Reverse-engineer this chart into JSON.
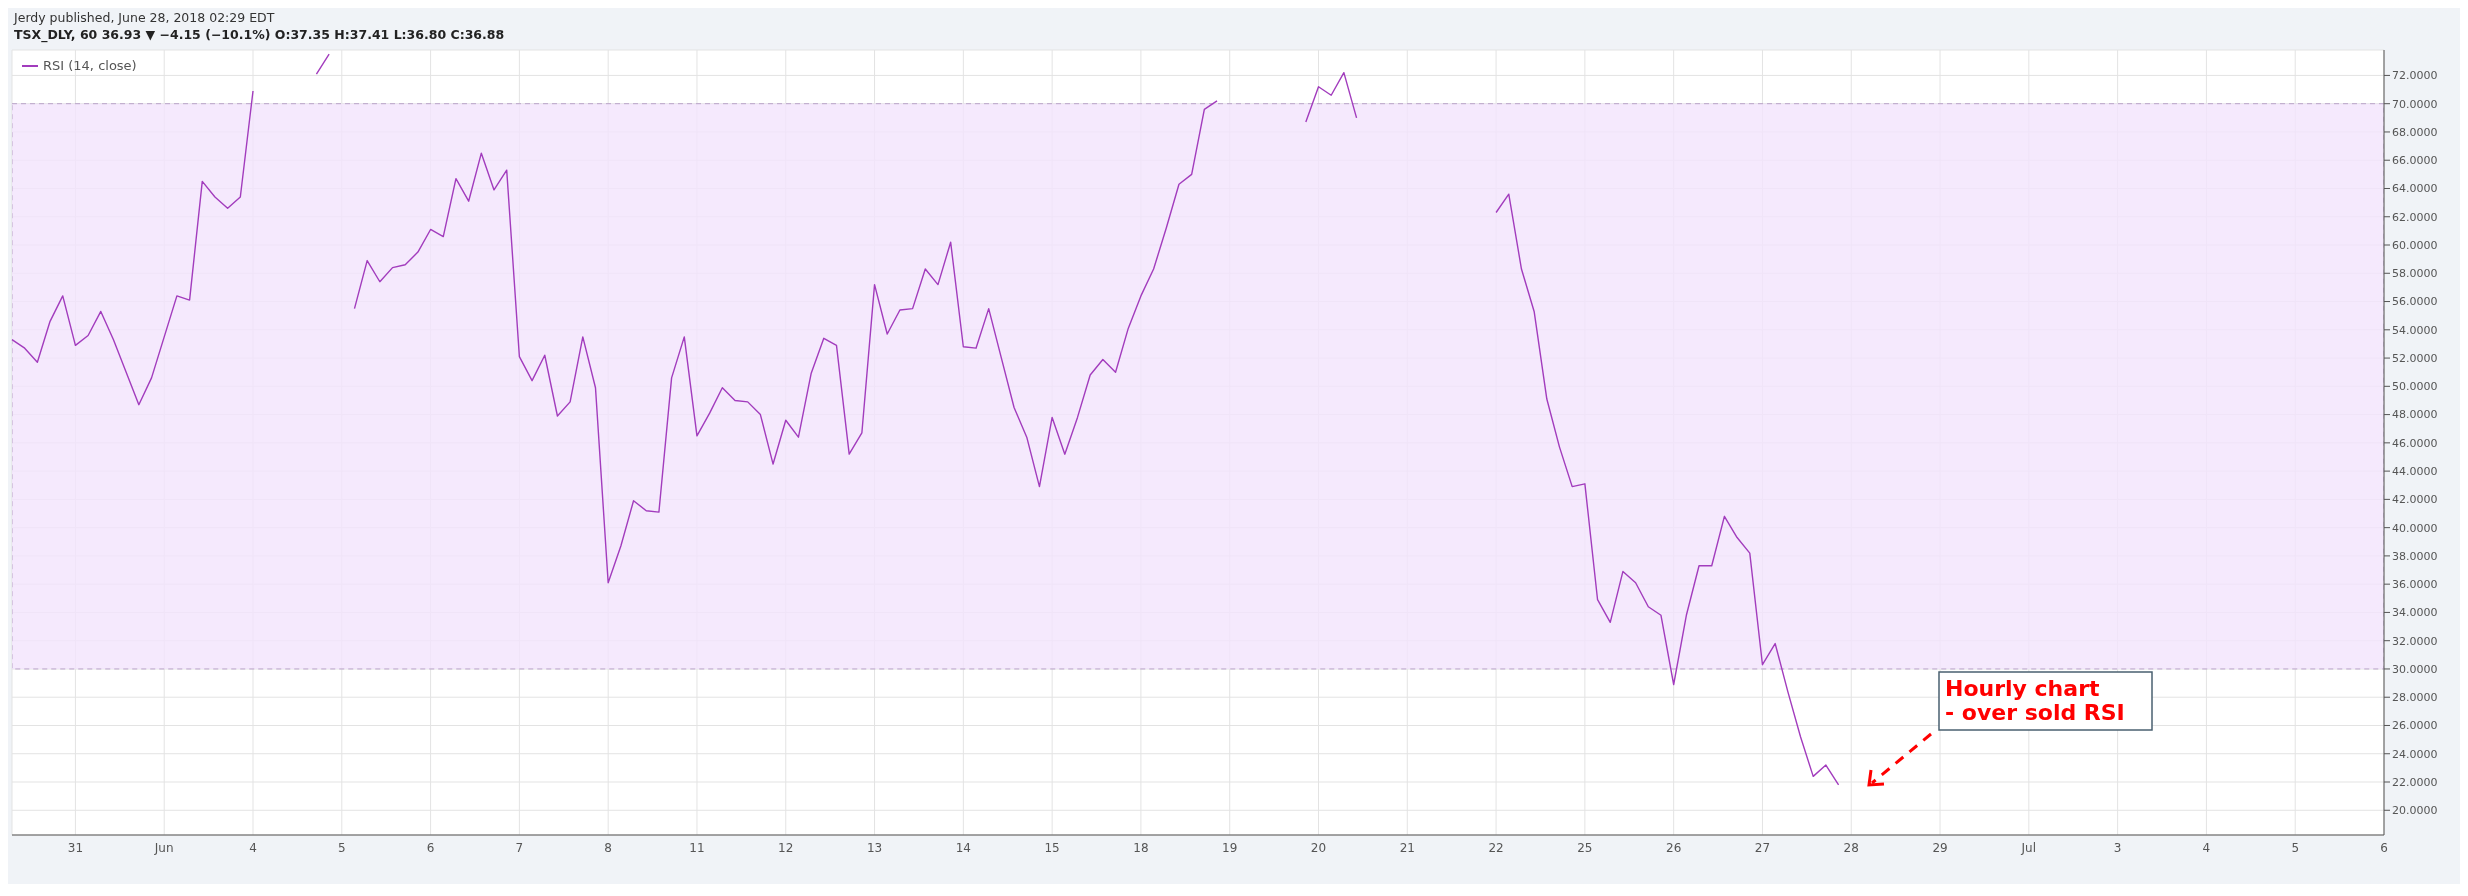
{
  "chart_data": {
    "type": "line",
    "title": "Jerdy published, June 28, 2018 02:29 EDT",
    "subtitle": "TSX_DLY, 60 36.93 ▼ −4.15 (−10.1%) O:37.35 H:37.41 L:36.80 C:36.88",
    "categories": [
      null,
      null,
      null,
      null,
      null,
      "31",
      null,
      null,
      null,
      null,
      null,
      null,
      "Jun",
      null,
      null,
      null,
      null,
      null,
      null,
      "4",
      null,
      null,
      null,
      null,
      null,
      null,
      "5",
      null,
      null,
      null,
      null,
      null,
      null,
      "6",
      null,
      null,
      null,
      null,
      null,
      null,
      "7",
      null,
      null,
      null,
      null,
      null,
      null,
      "8",
      null,
      null,
      null,
      null,
      null,
      null,
      "11",
      null,
      null,
      null,
      null,
      null,
      null,
      "12",
      null,
      null,
      null,
      null,
      null,
      null,
      "13",
      null,
      null,
      null,
      null,
      null,
      null,
      "14",
      null,
      null,
      null,
      null,
      null,
      null,
      "15",
      null,
      null,
      null,
      null,
      null,
      null,
      "18",
      null,
      null,
      null,
      null,
      null,
      null,
      "19",
      null,
      null,
      null,
      null,
      null,
      null,
      "20",
      null,
      null,
      null,
      null,
      null,
      null,
      "21",
      null,
      null,
      null,
      null,
      null,
      null,
      "22",
      null,
      null,
      null,
      null,
      null,
      null,
      "25",
      null,
      null,
      null,
      null,
      null,
      null,
      "26",
      null,
      null,
      null,
      null,
      null,
      null,
      "27",
      null,
      null,
      null,
      null,
      null,
      null,
      "28",
      null,
      null,
      null,
      null,
      null,
      null,
      "29",
      null,
      null,
      null,
      null,
      null,
      null,
      "Jul",
      null,
      null,
      null,
      null,
      null,
      null,
      "3",
      null,
      null,
      null,
      null,
      null,
      null,
      "4",
      null,
      null,
      null,
      null,
      null,
      null,
      "5",
      null,
      null,
      null,
      null,
      null,
      null,
      "6"
    ],
    "series": [
      {
        "name": "RSI (14, close)",
        "color": "#a23cbd",
        "values": [
          53.3,
          52.7,
          51.7,
          54.6,
          56.4,
          52.9,
          53.6,
          55.3,
          53.3,
          51.0,
          48.7,
          50.6,
          53.5,
          56.4,
          56.1,
          64.5,
          63.4,
          62.6,
          63.4,
          70.9,
          null,
          null,
          null,
          null,
          72.1,
          73.5,
          null,
          55.5,
          58.9,
          57.4,
          58.4,
          58.6,
          59.5,
          61.1,
          60.6,
          64.7,
          63.1,
          66.5,
          63.9,
          65.3,
          52.1,
          50.4,
          52.2,
          47.9,
          48.9,
          53.5,
          49.9,
          36.1,
          38.7,
          41.9,
          41.2,
          41.1,
          50.6,
          53.5,
          46.5,
          48.1,
          49.9,
          49.0,
          48.9,
          48.0,
          44.5,
          47.6,
          46.4,
          50.9,
          53.4,
          52.9,
          45.2,
          46.7,
          57.2,
          53.7,
          55.4,
          55.5,
          58.3,
          57.2,
          60.2,
          52.8,
          52.7,
          55.5,
          52.0,
          48.5,
          46.4,
          42.9,
          47.8,
          45.2,
          47.8,
          50.8,
          51.9,
          51.0,
          54.1,
          56.4,
          58.3,
          61.2,
          64.3,
          65.0,
          69.6,
          70.2,
          null,
          null,
          null,
          null,
          null,
          null,
          68.7,
          71.2,
          70.6,
          72.2,
          69.0,
          null,
          null,
          null,
          null,
          null,
          null,
          null,
          null,
          null,
          null,
          62.3,
          63.6,
          58.3,
          55.3,
          49.1,
          45.7,
          42.9,
          43.1,
          34.9,
          33.3,
          36.9,
          36.1,
          34.4,
          33.8,
          28.9,
          33.8,
          37.3,
          37.3,
          40.8,
          39.3,
          38.2,
          30.3,
          31.8,
          28.4,
          25.2,
          22.4,
          23.2,
          21.8,
          null,
          null,
          null,
          null,
          null,
          null,
          null,
          null,
          null,
          null,
          null,
          null,
          null,
          null,
          null,
          null,
          null,
          null,
          null,
          null,
          null,
          null,
          null,
          null,
          null,
          null,
          null,
          null,
          null,
          null,
          null,
          null,
          null,
          null,
          null,
          null,
          null,
          null,
          null,
          null,
          null,
          null,
          null
        ]
      }
    ],
    "ylim": [
      18.25,
      73.8
    ],
    "yticks": [
      {
        "value": 20,
        "label": "20.0000"
      },
      {
        "value": 22,
        "label": "22.0000"
      },
      {
        "value": 24,
        "label": "24.0000"
      },
      {
        "value": 26,
        "label": "26.0000"
      },
      {
        "value": 28,
        "label": "28.0000"
      },
      {
        "value": 30,
        "label": "30.0000"
      },
      {
        "value": 32,
        "label": "32.0000"
      },
      {
        "value": 34,
        "label": "34.0000"
      },
      {
        "value": 36,
        "label": "36.0000"
      },
      {
        "value": 38,
        "label": "38.0000"
      },
      {
        "value": 40,
        "label": "40.0000"
      },
      {
        "value": 42,
        "label": "42.0000"
      },
      {
        "value": 44,
        "label": "44.0000"
      },
      {
        "value": 46,
        "label": "46.0000"
      },
      {
        "value": 48,
        "label": "48.0000"
      },
      {
        "value": 50,
        "label": "50.0000"
      },
      {
        "value": 52,
        "label": "52.0000"
      },
      {
        "value": 54,
        "label": "54.0000"
      },
      {
        "value": 56,
        "label": "56.0000"
      },
      {
        "value": 58,
        "label": "58.0000"
      },
      {
        "value": 60,
        "label": "60.0000"
      },
      {
        "value": 62,
        "label": "62.0000"
      },
      {
        "value": 64,
        "label": "64.0000"
      },
      {
        "value": 66,
        "label": "66.0000"
      },
      {
        "value": 68,
        "label": "68.0000"
      },
      {
        "value": 70,
        "label": "70.0000"
      },
      {
        "value": 72,
        "label": "72.0000"
      }
    ],
    "bands": [
      {
        "axis": "y",
        "from": 30,
        "to": 70,
        "color": "#f3e4fd"
      }
    ],
    "annotations": [
      "Hourly chart\n- over sold RSI"
    ],
    "grid": true,
    "legend": "top left",
    "marker": "none",
    "line_style": "solid"
  }
}
